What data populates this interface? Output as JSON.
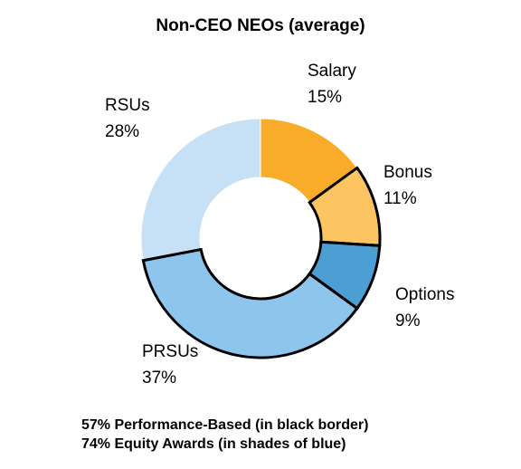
{
  "chart_data": {
    "type": "pie",
    "donut": true,
    "title": "Non-CEO NEOs (average)",
    "categories": [
      "Salary",
      "Bonus",
      "Options",
      "PRSUs",
      "RSUs"
    ],
    "values": [
      15,
      11,
      9,
      37,
      28
    ],
    "labels": [
      "15%",
      "11%",
      "9%",
      "37%",
      "28%"
    ],
    "colors": [
      "#F9AB2A",
      "#FDC562",
      "#4C9FD3",
      "#8EC5EC",
      "#C6E0F5"
    ],
    "performance_based": [
      false,
      true,
      true,
      true,
      false
    ],
    "legend": "none"
  },
  "notes": [
    "57% Performance-Based (in black border)",
    "74% Equity Awards (in shades of blue)"
  ]
}
